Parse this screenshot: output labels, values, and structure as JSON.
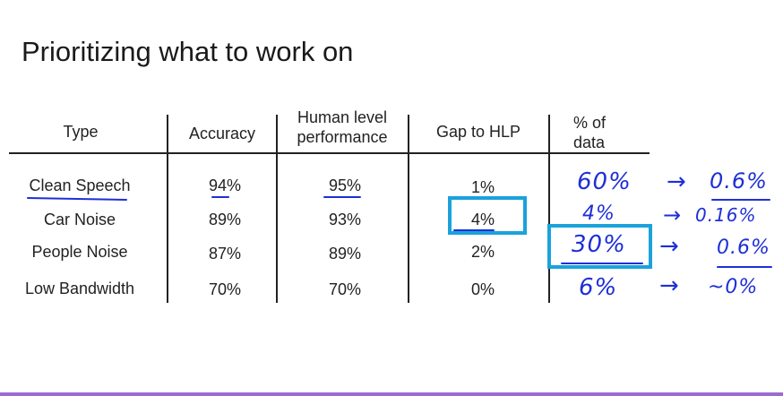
{
  "title": "Prioritizing what to work on",
  "table": {
    "headers": [
      "Type",
      "Accuracy",
      "Human level performance",
      "Gap to HLP",
      "% of data"
    ],
    "header_lines": {
      "human_1": "Human level",
      "human_2": "performance",
      "data_1": "% of",
      "data_2": "data"
    },
    "rows": [
      {
        "type": "Clean Speech",
        "accuracy": "94%",
        "hlp": "95%",
        "gap": "1%",
        "pct": "60%",
        "arrow": "→",
        "result": "0.6%"
      },
      {
        "type": "Car Noise",
        "accuracy": "89%",
        "hlp": "93%",
        "gap": "4%",
        "pct": "4%",
        "arrow": "→",
        "result": "0.16%"
      },
      {
        "type": "People Noise",
        "accuracy": "87%",
        "hlp": "89%",
        "gap": "2%",
        "pct": "30%",
        "arrow": "→",
        "result": "0.6%"
      },
      {
        "type": "Low Bandwidth",
        "accuracy": "70%",
        "hlp": "70%",
        "gap": "0%",
        "pct": "6%",
        "arrow": "→",
        "result": "~0%"
      }
    ]
  },
  "colors": {
    "ink": "#1e2fd6",
    "highlight_box": "#1aa2dc",
    "bottom_bar": "#9a6cd0"
  }
}
